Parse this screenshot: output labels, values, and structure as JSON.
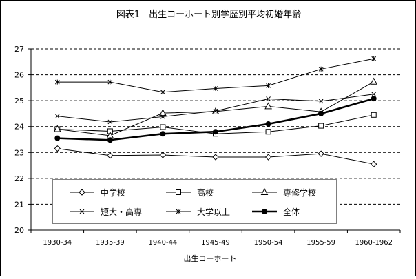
{
  "chart_data": {
    "type": "line",
    "title": "図表1　出生コーホート別学歴別平均初婚年齢",
    "xlabel": "出生コーホート",
    "ylabel": "",
    "categories": [
      "1930-34",
      "1935-39",
      "1940-44",
      "1945-49",
      "1950-54",
      "1955-59",
      "1960-1962"
    ],
    "ylim": [
      20,
      27
    ],
    "yticks": [
      20,
      21,
      22,
      23,
      24,
      25,
      26,
      27
    ],
    "grid": "horizontal-dashed",
    "legend_position": "bottom-left-inside",
    "series": [
      {
        "name": "中学校",
        "marker": "diamond-open",
        "values": [
          23.15,
          22.88,
          22.9,
          22.82,
          22.82,
          22.95,
          22.55
        ]
      },
      {
        "name": "高校",
        "marker": "square-open",
        "values": [
          23.9,
          23.82,
          23.98,
          23.72,
          23.8,
          24.03,
          24.45
        ]
      },
      {
        "name": "専修学校",
        "marker": "triangle-open",
        "values": [
          23.9,
          23.65,
          24.52,
          24.58,
          24.78,
          24.57,
          25.73
        ]
      },
      {
        "name": "短大・高専",
        "marker": "x",
        "values": [
          24.4,
          24.18,
          24.38,
          24.6,
          25.07,
          24.98,
          25.25
        ]
      },
      {
        "name": "大学以上",
        "marker": "asterisk",
        "values": [
          25.72,
          25.72,
          25.33,
          25.47,
          25.58,
          26.22,
          26.62
        ]
      },
      {
        "name": "全体",
        "marker": "filled-circle",
        "values": [
          23.55,
          23.48,
          23.72,
          23.8,
          24.1,
          24.5,
          25.08
        ]
      }
    ]
  }
}
